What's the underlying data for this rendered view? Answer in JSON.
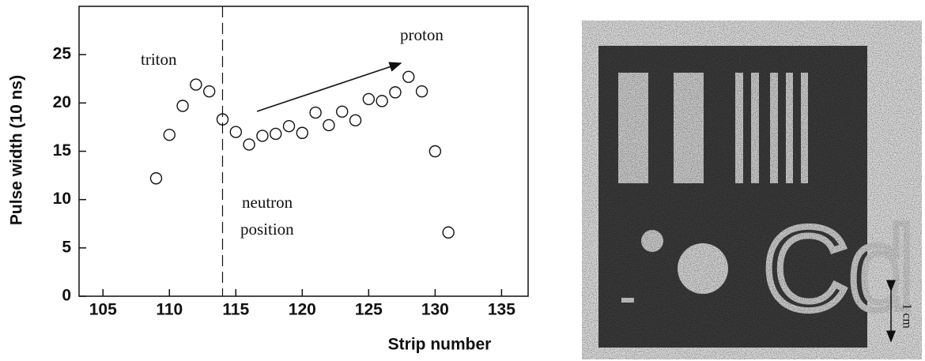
{
  "chart_data": {
    "type": "scatter",
    "xlabel": "Strip number",
    "ylabel": "Pulse width (10 ns)",
    "x": [
      109,
      110,
      111,
      112,
      113,
      114,
      115,
      116,
      117,
      118,
      119,
      120,
      121,
      122,
      123,
      124,
      125,
      126,
      127,
      128,
      129,
      130,
      131
    ],
    "values": [
      12.2,
      16.7,
      19.7,
      21.9,
      21.2,
      18.3,
      17.0,
      15.7,
      16.6,
      16.8,
      17.6,
      16.9,
      19.0,
      17.7,
      19.1,
      18.2,
      20.4,
      20.2,
      21.1,
      22.7,
      21.2,
      15.0,
      6.6
    ],
    "xlim": [
      103.2,
      137
    ],
    "ylim": [
      0,
      30
    ],
    "xticks": [
      105,
      110,
      115,
      120,
      125,
      130,
      135
    ],
    "yticks": [
      0,
      5,
      10,
      15,
      20,
      25
    ],
    "vline": 114,
    "annotations": [
      "triton",
      "proton",
      "neutron",
      "position"
    ]
  },
  "image": {
    "label": "Cd",
    "scale_label": "1 cm"
  }
}
